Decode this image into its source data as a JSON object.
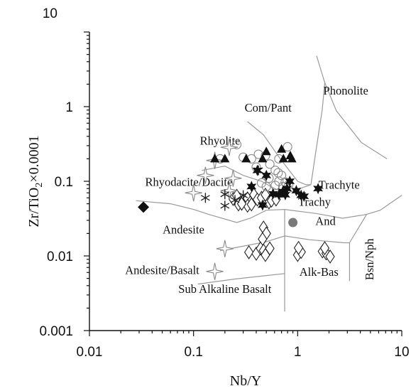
{
  "chart_data": {
    "type": "scatter",
    "xlabel": "Nb/Y",
    "ylabel_parts": [
      "Zr/TiO",
      "2",
      "×0.0001"
    ],
    "xscale": "log",
    "yscale": "log",
    "xlim": [
      0.01,
      10
    ],
    "ylim": [
      0.001,
      10
    ],
    "x_tick_labels": [
      {
        "value": 0.01,
        "label": "0.01"
      },
      {
        "value": 0.1,
        "label": "0.1"
      },
      {
        "value": 1,
        "label": "1"
      },
      {
        "value": 10,
        "label": "10"
      }
    ],
    "y_tick_labels": [
      {
        "value": 0.001,
        "label": "0.001"
      },
      {
        "value": 0.01,
        "label": "0.01"
      },
      {
        "value": 0.1,
        "label": "0.1"
      },
      {
        "value": 1,
        "label": "1"
      },
      {
        "value": 10,
        "label": "10"
      }
    ],
    "grid": false,
    "field_labels": [
      {
        "text": "Phonolite",
        "x": 2.9,
        "y": 1.45
      },
      {
        "text": "Com/Pant",
        "x": 0.52,
        "y": 0.86
      },
      {
        "text": "Rhyolite",
        "x": 0.18,
        "y": 0.31
      },
      {
        "text": "Rhyodacite/Dacite",
        "x": 0.09,
        "y": 0.087
      },
      {
        "text": "Trachyte",
        "x": 2.5,
        "y": 0.079
      },
      {
        "text": "Trachy",
        "x": 1.45,
        "y": 0.047
      },
      {
        "text": "And",
        "x": 1.85,
        "y": 0.026
      },
      {
        "text": "Andesite",
        "x": 0.08,
        "y": 0.02
      },
      {
        "text": "Andesite/Basalt",
        "x": 0.05,
        "y": 0.0057
      },
      {
        "text": "Alk-Bas",
        "x": 1.6,
        "y": 0.0054
      },
      {
        "text": "Sub Alkaline Basalt",
        "x": 0.2,
        "y": 0.0032
      },
      {
        "text": "Bsn/Nph",
        "x": 5.35,
        "y": 0.009,
        "rotate": -90
      }
    ],
    "boundaries": [
      {
        "name": "com-pant-rhyolite-boundary",
        "points": [
          [
            0.33,
            0.63
          ],
          [
            0.47,
            0.42
          ],
          [
            0.68,
            0.2
          ],
          [
            1.0,
            0.1
          ],
          [
            1.2,
            0.09
          ],
          [
            1.34,
            0.09
          ]
        ]
      },
      {
        "name": "phonolite-left-boundary",
        "points": [
          [
            1.34,
            0.09
          ],
          [
            1.5,
            0.26
          ],
          [
            1.72,
            0.9
          ],
          [
            1.82,
            2.1
          ],
          [
            1.52,
            4.8
          ]
        ]
      },
      {
        "name": "phonolite-lower-boundary",
        "points": [
          [
            1.82,
            2.1
          ],
          [
            2.35,
            0.88
          ],
          [
            4.1,
            0.33
          ],
          [
            7.2,
            0.2
          ]
        ]
      },
      {
        "name": "rhyolite-dacite-boundary",
        "points": [
          [
            0.12,
            0.14
          ],
          [
            0.2,
            0.16
          ],
          [
            0.3,
            0.12
          ],
          [
            0.45,
            0.1
          ],
          [
            0.6,
            0.08
          ],
          [
            0.8,
            0.07
          ],
          [
            1.34,
            0.09
          ]
        ]
      },
      {
        "name": "dacite-andesite-boundary",
        "points": [
          [
            0.028,
            0.055
          ],
          [
            0.06,
            0.05
          ],
          [
            0.1,
            0.042
          ],
          [
            0.14,
            0.036
          ],
          [
            0.26,
            0.028
          ],
          [
            0.35,
            0.032
          ],
          [
            0.5,
            0.041
          ],
          [
            0.75,
            0.042
          ]
        ]
      },
      {
        "name": "trachyte-trachyand-boundary",
        "points": [
          [
            0.75,
            0.042
          ],
          [
            1.5,
            0.037
          ],
          [
            2.7,
            0.032
          ],
          [
            4.6,
            0.036
          ]
        ]
      },
      {
        "name": "andesite-andbasalt-boundary",
        "points": [
          [
            0.18,
            0.0118
          ],
          [
            0.5,
            0.0155
          ],
          [
            0.75,
            0.0185
          ]
        ]
      },
      {
        "name": "trachyand-alkbas-boundary",
        "points": [
          [
            0.75,
            0.0185
          ],
          [
            1.3,
            0.0165
          ],
          [
            2.8,
            0.015
          ],
          [
            3.15,
            0.015
          ]
        ]
      },
      {
        "name": "andesite-trachyand-divide",
        "points": [
          [
            0.75,
            0.042
          ],
          [
            0.75,
            0.0185
          ]
        ]
      },
      {
        "name": "subalkaline-alkaline-divide",
        "points": [
          [
            0.75,
            0.0185
          ],
          [
            0.75,
            0.0018
          ]
        ]
      },
      {
        "name": "andbasalt-subalkaline-boundary",
        "points": [
          [
            0.11,
            0.0042
          ],
          [
            0.25,
            0.0049
          ],
          [
            0.75,
            0.0058
          ]
        ]
      },
      {
        "name": "alkbas-bsnnph-divide",
        "points": [
          [
            3.15,
            0.015
          ],
          [
            3.15,
            0.0046
          ]
        ]
      },
      {
        "name": "trachyand-bsnnph-boundary",
        "points": [
          [
            4.6,
            0.036
          ],
          [
            3.15,
            0.015
          ]
        ]
      },
      {
        "name": "trachyte-right-boundary",
        "points": [
          [
            4.6,
            0.036
          ],
          [
            6.2,
            0.041
          ],
          [
            10.0,
            0.065
          ]
        ]
      }
    ],
    "series": [
      {
        "marker": "diamond-open",
        "points": [
          [
            0.24,
            0.058
          ],
          [
            0.26,
            0.064
          ],
          [
            0.27,
            0.049
          ],
          [
            0.3,
            0.055
          ],
          [
            0.33,
            0.059
          ],
          [
            0.35,
            0.052
          ],
          [
            0.38,
            0.066
          ],
          [
            0.41,
            0.057
          ],
          [
            0.45,
            0.06
          ],
          [
            0.49,
            0.066
          ],
          [
            0.53,
            0.052
          ],
          [
            0.56,
            0.055
          ],
          [
            0.62,
            0.057
          ],
          [
            0.33,
            0.047
          ],
          [
            0.29,
            0.05
          ],
          [
            0.36,
            0.049
          ],
          [
            0.47,
            0.024
          ],
          [
            0.5,
            0.02
          ],
          [
            0.46,
            0.0168
          ],
          [
            0.34,
            0.0112
          ],
          [
            0.4,
            0.0107
          ],
          [
            0.44,
            0.0126
          ],
          [
            0.47,
            0.0118
          ],
          [
            0.51,
            0.0112
          ],
          [
            0.54,
            0.0126
          ],
          [
            0.49,
            0.0103
          ],
          [
            1.0,
            0.0103
          ],
          [
            1.08,
            0.0113
          ],
          [
            1.02,
            0.0128
          ],
          [
            1.73,
            0.0115
          ],
          [
            1.88,
            0.0108
          ],
          [
            2.05,
            0.0098
          ],
          [
            1.82,
            0.0127
          ]
        ]
      },
      {
        "marker": "circle-open",
        "points": [
          [
            0.26,
            0.31
          ],
          [
            0.18,
            0.2
          ],
          [
            0.3,
            0.21
          ],
          [
            0.42,
            0.23
          ],
          [
            0.49,
            0.22
          ],
          [
            0.54,
            0.17
          ],
          [
            0.61,
            0.14
          ],
          [
            0.65,
            0.13
          ],
          [
            0.7,
            0.12
          ],
          [
            0.53,
            0.11
          ],
          [
            0.45,
            0.095
          ],
          [
            0.5,
            0.085
          ],
          [
            0.61,
            0.088
          ],
          [
            0.66,
            0.1
          ],
          [
            0.76,
            0.098
          ],
          [
            0.72,
            0.085
          ],
          [
            0.82,
            0.09
          ],
          [
            0.66,
            0.2
          ],
          [
            0.36,
            0.2
          ],
          [
            0.4,
            0.155
          ],
          [
            0.8,
            0.29
          ]
        ]
      },
      {
        "marker": "star4-open",
        "points": [
          [
            0.16,
            0.19
          ],
          [
            0.22,
            0.285
          ],
          [
            0.13,
            0.12
          ],
          [
            0.1,
            0.07
          ],
          [
            0.22,
            0.075
          ],
          [
            0.2,
            0.0125
          ],
          [
            0.16,
            0.0062
          ],
          [
            0.24,
            0.11
          ]
        ]
      },
      {
        "marker": "asterisk",
        "points": [
          [
            0.13,
            0.06
          ],
          [
            0.2,
            0.067
          ],
          [
            0.2,
            0.047
          ],
          [
            0.42,
            0.14
          ],
          [
            0.3,
            0.065
          ],
          [
            0.25,
            0.056
          ]
        ]
      },
      {
        "marker": "triangle-filled",
        "points": [
          [
            0.16,
            0.2
          ],
          [
            0.2,
            0.2
          ],
          [
            0.32,
            0.2
          ],
          [
            0.46,
            0.2
          ],
          [
            0.5,
            0.25
          ],
          [
            0.7,
            0.27
          ],
          [
            0.73,
            0.2
          ],
          [
            0.85,
            0.22
          ],
          [
            0.88,
            0.2
          ]
        ]
      },
      {
        "marker": "star6-filled",
        "points": [
          [
            0.41,
            0.14
          ],
          [
            0.5,
            0.12
          ],
          [
            0.36,
            0.085
          ],
          [
            0.72,
            0.073
          ],
          [
            0.84,
            0.1
          ],
          [
            0.79,
            0.08
          ],
          [
            0.66,
            0.066
          ],
          [
            0.76,
            0.066
          ],
          [
            0.97,
            0.075
          ],
          [
            1.08,
            0.065
          ],
          [
            1.15,
            0.063
          ],
          [
            1.57,
            0.08
          ],
          [
            0.58,
            0.068
          ],
          [
            0.46,
            0.048
          ]
        ]
      },
      {
        "marker": "diamond-filled",
        "points": [
          [
            0.033,
            0.045
          ]
        ]
      },
      {
        "marker": "circle-filled-grey",
        "points": [
          [
            0.9,
            0.028
          ]
        ]
      }
    ]
  }
}
